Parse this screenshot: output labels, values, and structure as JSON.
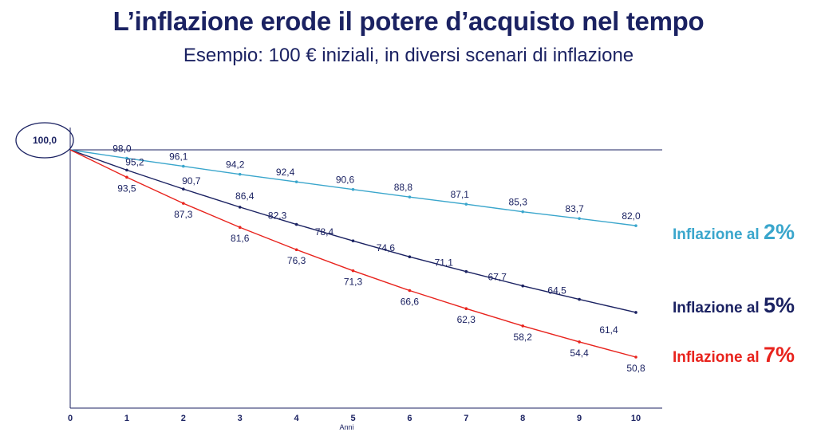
{
  "title": "L’inflazione erode il potere d’acquisto nel tempo",
  "subtitle": "Esempio: 100 € iniziali, in diversi scenari di inflazione",
  "colors": {
    "navy": "#1b2262",
    "cyan": "#3aa6cc",
    "red": "#e8231d"
  },
  "chart_data": {
    "type": "line",
    "xlabel": "Anni",
    "ylabel": "",
    "x": [
      0,
      1,
      2,
      3,
      4,
      5,
      6,
      7,
      8,
      9,
      10
    ],
    "start_label": "100,0",
    "ylim": [
      45,
      102
    ],
    "series": [
      {
        "key": "i2",
        "name": "Inflazione al 2%",
        "legend_text": "Inflazione al ",
        "legend_pct": "2%",
        "color": "#3aa6cc",
        "values": [
          100.0,
          98.0,
          96.1,
          94.2,
          92.4,
          90.6,
          88.8,
          87.1,
          85.3,
          83.7,
          82.0
        ],
        "labels": [
          "",
          "98,0",
          "96,1",
          "94,2",
          "92,4",
          "90,6",
          "88,8",
          "87,1",
          "85,3",
          "83,7",
          "82,0"
        ]
      },
      {
        "key": "i5",
        "name": "Inflazione al 5%",
        "legend_text": "Inflazione al ",
        "legend_pct": "5%",
        "color": "#1b2262",
        "values": [
          100.0,
          95.2,
          90.7,
          86.4,
          82.3,
          78.4,
          74.6,
          71.1,
          67.7,
          64.5,
          61.4
        ],
        "labels": [
          "",
          "95,2",
          "90,7",
          "86,4",
          "82,3",
          "78,4",
          "74,6",
          "71,1",
          "67,7",
          "64,5",
          "61,4"
        ]
      },
      {
        "key": "i7",
        "name": "Inflazione al 7%",
        "legend_text": "Inflazione al ",
        "legend_pct": "7%",
        "color": "#e8231d",
        "values": [
          100.0,
          93.5,
          87.3,
          81.6,
          76.3,
          71.3,
          66.6,
          62.3,
          58.2,
          54.4,
          50.8
        ],
        "labels": [
          "",
          "93,5",
          "87,3",
          "81,6",
          "76,3",
          "71,3",
          "66,6",
          "62,3",
          "58,2",
          "54,4",
          "50,8"
        ]
      }
    ]
  }
}
